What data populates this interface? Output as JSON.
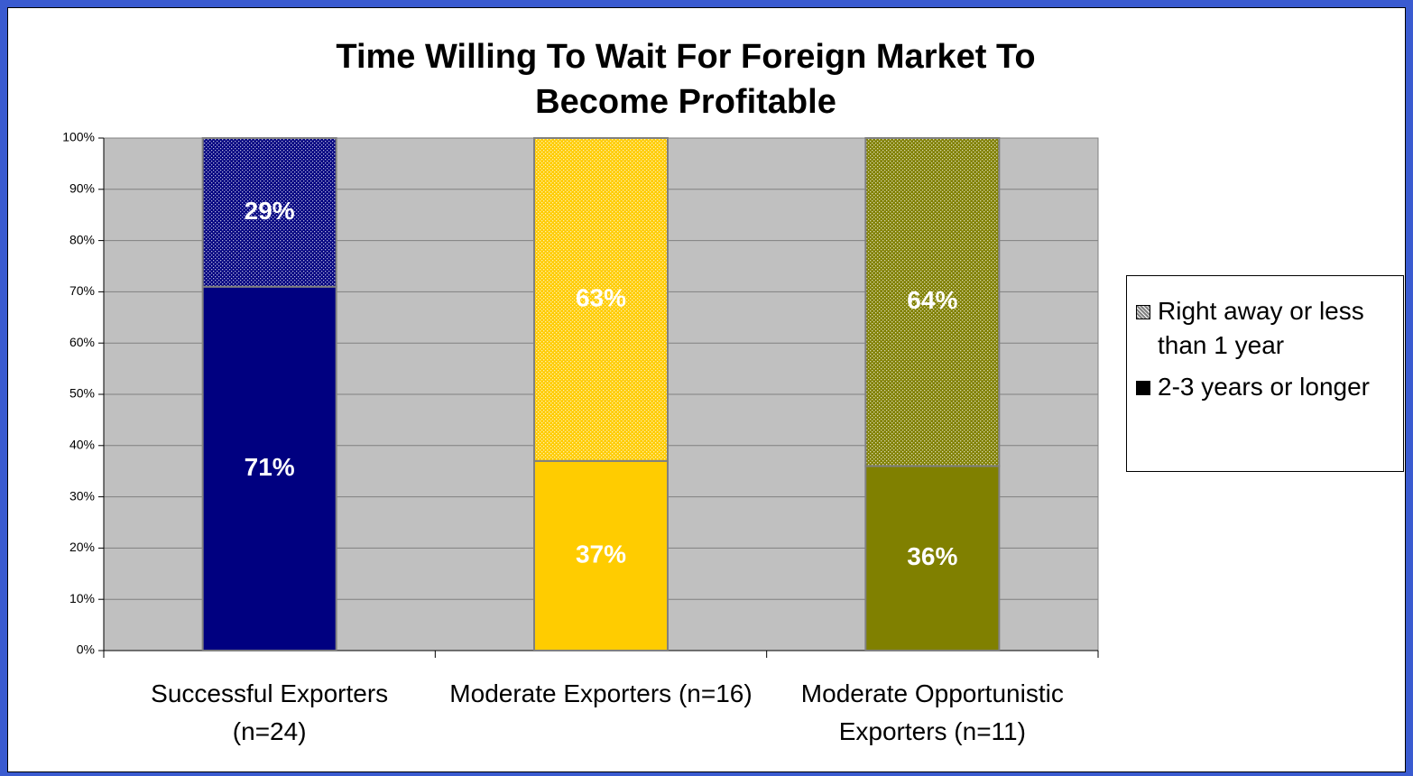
{
  "chart_data": {
    "type": "stacked_bar_100",
    "title": "Time Willing To Wait For Foreign Market To Become Profitable",
    "categories": [
      "Successful Exporters (n=24)",
      "Moderate Exporters (n=16)",
      "Moderate Opportunistic Exporters (n=11)"
    ],
    "series": [
      {
        "name": "2-3 years or longer",
        "color": "#000000",
        "point_colors": [
          "#000080",
          "#ffcc00",
          "#808000"
        ],
        "patterned": false,
        "values": [
          71,
          37,
          36
        ],
        "value_labels": [
          "71%",
          "37%",
          "36%"
        ]
      },
      {
        "name": "Right away or less than 1 year",
        "color": "#808080",
        "point_colors": [
          "#000080",
          "#ffcc00",
          "#808000"
        ],
        "patterned": true,
        "values": [
          29,
          63,
          64
        ],
        "value_labels": [
          "29%",
          "63%",
          "64%"
        ]
      }
    ],
    "ylim": [
      0,
      100
    ],
    "yticks": [
      {
        "value": 0,
        "label": "0%"
      },
      {
        "value": 10,
        "label": "10%"
      },
      {
        "value": 20,
        "label": "20%"
      },
      {
        "value": 30,
        "label": "30%"
      },
      {
        "value": 40,
        "label": "40%"
      },
      {
        "value": 50,
        "label": "50%"
      },
      {
        "value": 60,
        "label": "60%"
      },
      {
        "value": 70,
        "label": "70%"
      },
      {
        "value": 80,
        "label": "80%"
      },
      {
        "value": 90,
        "label": "90%"
      },
      {
        "value": 100,
        "label": "100%"
      }
    ],
    "grid": true,
    "legend": "right"
  }
}
